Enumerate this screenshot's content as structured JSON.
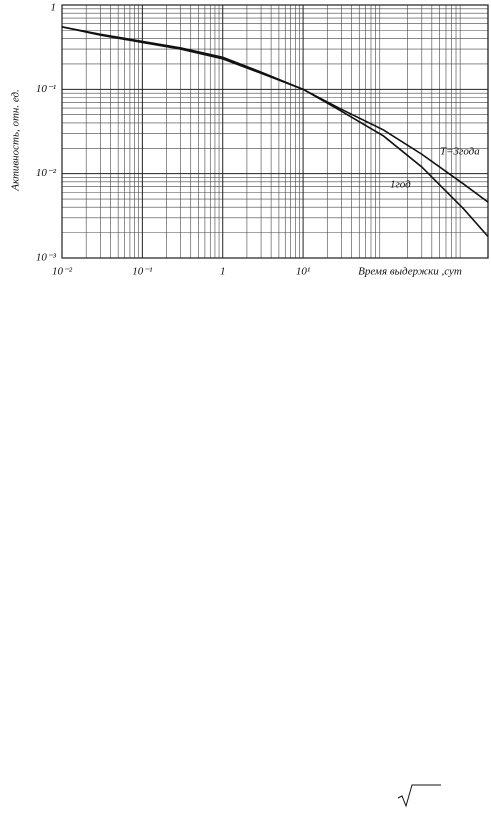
{
  "chart_data": {
    "type": "line",
    "x_label": "Время выдержки ,сут",
    "y_label": "Активность, отн. ед.",
    "x": [
      0.01,
      0.03,
      0.1,
      0.3,
      1,
      3,
      10,
      30,
      100,
      300,
      1000,
      2000
    ],
    "series": [
      {
        "name": "Т=3года",
        "color": "#111111",
        "values": [
          0.55,
          0.45,
          0.37,
          0.31,
          0.24,
          0.16,
          0.1,
          0.058,
          0.033,
          0.017,
          0.0075,
          0.0046
        ]
      },
      {
        "name": "1год",
        "color": "#111111",
        "values": [
          0.55,
          0.44,
          0.36,
          0.3,
          0.23,
          0.155,
          0.1,
          0.055,
          0.028,
          0.012,
          0.0038,
          0.0018
        ]
      }
    ],
    "xlim": [
      0.01,
      2000
    ],
    "ylim": [
      0.001,
      1
    ],
    "xticks": [
      {
        "value": 0.01,
        "label": "10⁻²"
      },
      {
        "value": 0.1,
        "label": "10⁻¹"
      },
      1,
      {
        "value": 10,
        "label": "10¹"
      }
    ],
    "yticks": [
      {
        "value": 0.001,
        "label": "10⁻³"
      },
      {
        "value": 0.01,
        "label": "10⁻²"
      },
      {
        "value": 0.1,
        "label": "10⁻¹"
      },
      1
    ],
    "log_x": true,
    "log_y": true,
    "grid": true
  }
}
